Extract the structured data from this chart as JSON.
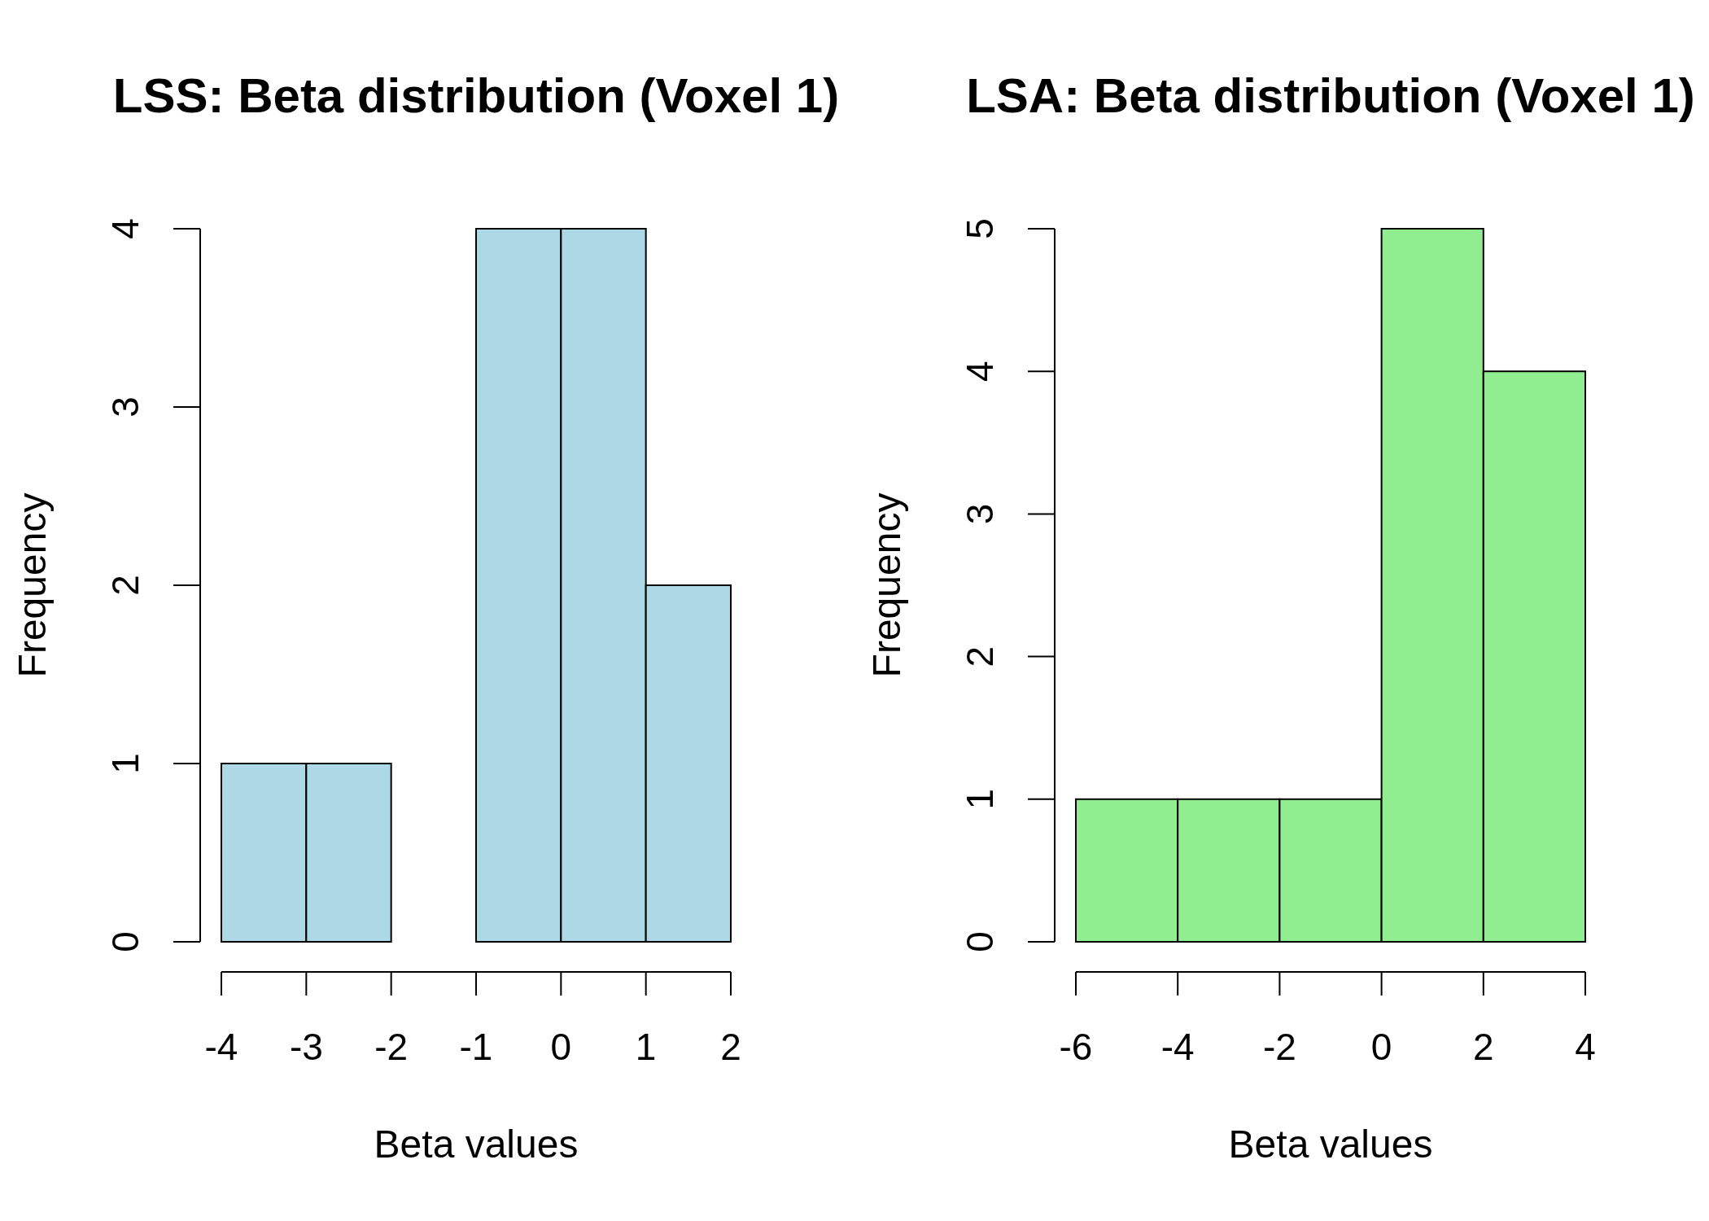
{
  "chart_data": [
    {
      "type": "histogram",
      "title": "LSS: Beta distribution (Voxel 1)",
      "xlabel": "Beta values",
      "ylabel": "Frequency",
      "bins": [
        -4,
        -3,
        -2,
        -1,
        0,
        1,
        2
      ],
      "values": [
        1,
        1,
        0,
        4,
        4,
        2
      ],
      "color": "#add8e6",
      "xlim": [
        -4,
        2
      ],
      "xticks": [
        -4,
        -3,
        -2,
        -1,
        0,
        1,
        2
      ],
      "ylim": [
        0,
        4
      ],
      "yticks": [
        0,
        1,
        2,
        3,
        4
      ]
    },
    {
      "type": "histogram",
      "title": "LSA: Beta distribution (Voxel 1)",
      "xlabel": "Beta values",
      "ylabel": "Frequency",
      "bins": [
        -6,
        -4,
        -2,
        0,
        2,
        4
      ],
      "values": [
        1,
        1,
        1,
        5,
        4
      ],
      "color": "#90ee90",
      "xlim": [
        -6,
        4
      ],
      "xticks": [
        -6,
        -4,
        -2,
        0,
        2,
        4
      ],
      "ylim": [
        0,
        5
      ],
      "yticks": [
        0,
        1,
        2,
        3,
        4,
        5
      ]
    }
  ]
}
